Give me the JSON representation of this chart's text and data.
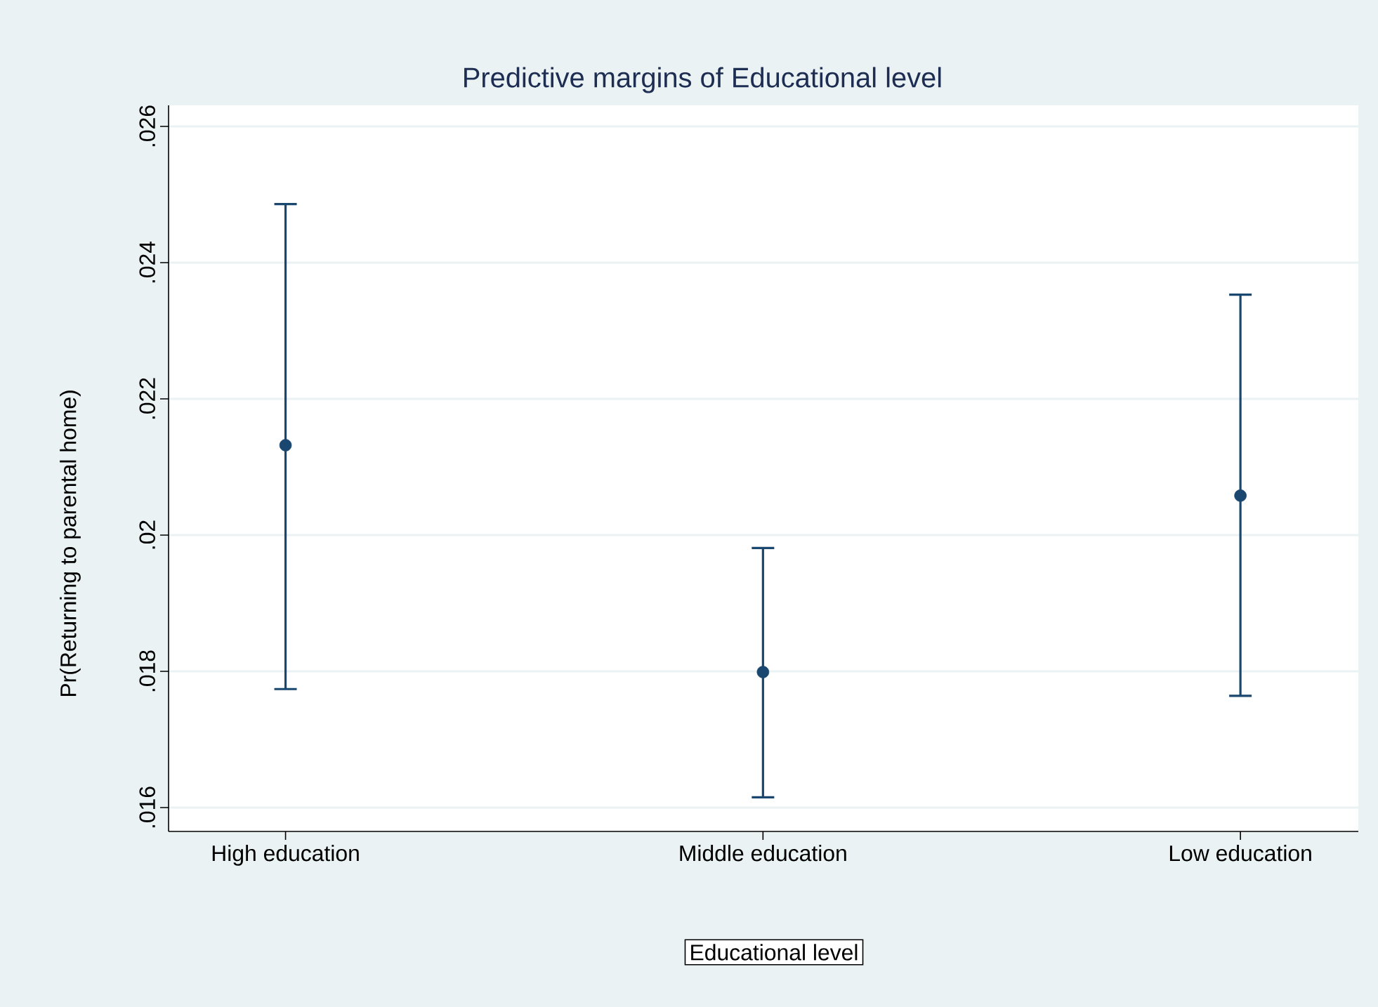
{
  "chart_data": {
    "type": "scatter",
    "title": "Predictive margins of Educational level",
    "xlabel": "Educational level",
    "ylabel": "Pr(Returning to parental home)",
    "categories": [
      "High education",
      "Middle education",
      "Low education"
    ],
    "values": [
      0.02132,
      0.01799,
      0.02058
    ],
    "errors": [
      [
        0.01774,
        0.02486
      ],
      [
        0.01615,
        0.01981
      ],
      [
        0.01764,
        0.02353
      ]
    ],
    "color": "#1a476f",
    "marker": "circle",
    "ylim": [
      0.01565,
      0.02631
    ],
    "yticks": [
      {
        "value": 0.016,
        "label": ".016"
      },
      {
        "value": 0.018,
        "label": ".018"
      },
      {
        "value": 0.02,
        "label": ".02"
      },
      {
        "value": 0.022,
        "label": ".022"
      },
      {
        "value": 0.024,
        "label": ".024"
      },
      {
        "value": 0.026,
        "label": ".026"
      }
    ],
    "grid": "y"
  }
}
